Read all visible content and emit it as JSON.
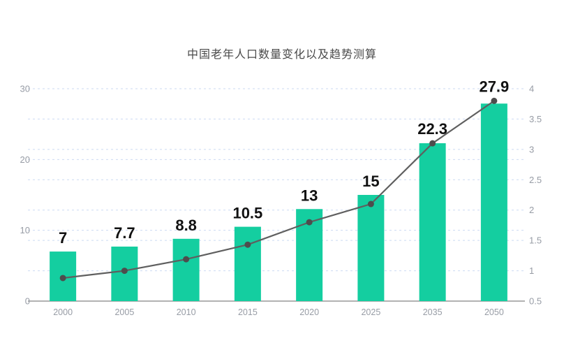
{
  "chart_data": {
    "type": "bar+line",
    "title": "中国老年人口数量变化以及趋势测算",
    "categories": [
      "2000",
      "2005",
      "2010",
      "2015",
      "2020",
      "2025",
      "2035",
      "2050"
    ],
    "series": [
      {
        "name": "elderly-population-share-bar",
        "type": "bar",
        "axis": "left",
        "values": [
          7,
          7.7,
          8.8,
          10.5,
          13,
          15,
          22.3,
          27.9
        ],
        "labels": [
          "7",
          "7.7",
          "8.8",
          "10.5",
          "13",
          "15",
          "22.3",
          "27.9"
        ],
        "color": "#14CEA0"
      },
      {
        "name": "elderly-population-count-line",
        "type": "line",
        "axis": "right",
        "values": [
          0.88,
          1.0,
          1.19,
          1.43,
          1.8,
          2.1,
          3.1,
          3.8
        ],
        "color": "#5F5F5F",
        "point_color": "#4D4D4D"
      }
    ],
    "left_axis": {
      "min": 0,
      "max": 30,
      "ticks": [
        "0",
        "10",
        "20",
        "30"
      ]
    },
    "right_axis": {
      "min": 0.5,
      "max": 4,
      "ticks": [
        "0.5",
        "1",
        "1.5",
        "2",
        "2.5",
        "3",
        "3.5",
        "4"
      ]
    },
    "grid": {
      "style": "dashed",
      "color": "#CBDAF2"
    },
    "colors": {
      "axis_line": "#666666",
      "tick_label": "#979CA5",
      "data_label": "#111111",
      "title": "#4A4A4A",
      "background": "#FFFFFF"
    },
    "legend": "none"
  }
}
